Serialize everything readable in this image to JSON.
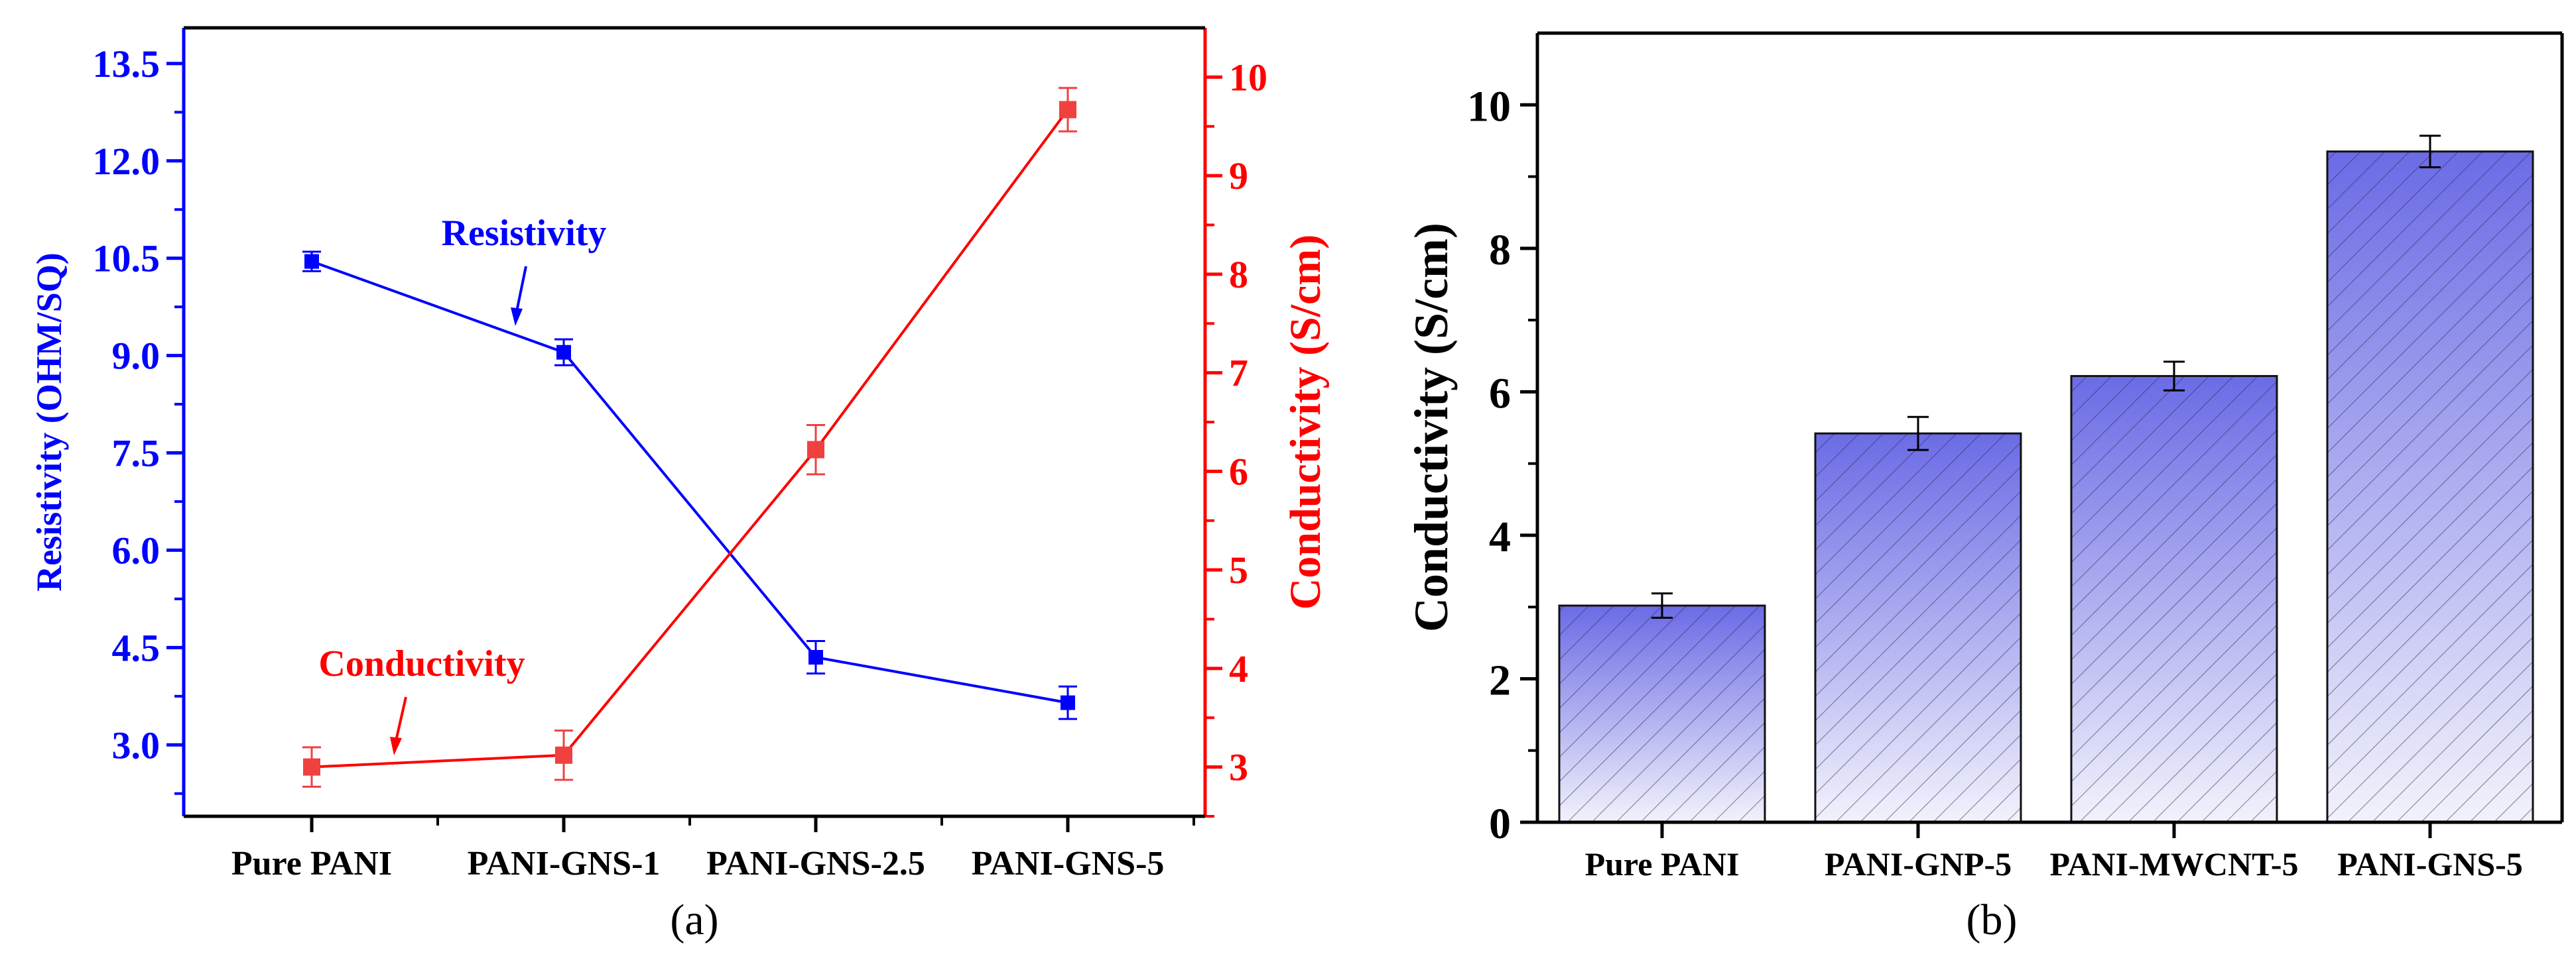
{
  "chart_data": [
    {
      "panel_label": "(a)",
      "type": "line",
      "categories": [
        "Pure PANI",
        "PANI-GNS-1",
        "PANI-GNS-2.5",
        "PANI-GNS-5"
      ],
      "series": [
        {
          "name": "Resistivity",
          "axis": "left",
          "color": "#0000ff",
          "values": [
            10.45,
            9.05,
            4.35,
            3.65
          ],
          "errors": [
            0.15,
            0.2,
            0.25,
            0.25
          ]
        },
        {
          "name": "Conductivity",
          "axis": "right",
          "color": "#ff0000",
          "marker_color": "#f04040",
          "values": [
            3.0,
            3.12,
            6.22,
            9.67
          ],
          "errors": [
            0.2,
            0.25,
            0.25,
            0.22
          ]
        }
      ],
      "ylabel_left": "Resistivity (OHM/SQ)",
      "ylabel_right": "Conductivity (S/cm)",
      "ylim_left": [
        1.9,
        14.05
      ],
      "ylim_right": [
        2.5,
        10.5
      ],
      "yticks_left": [
        "3.0",
        "4.5",
        "6.0",
        "7.5",
        "9.0",
        "10.5",
        "12.0",
        "13.5"
      ],
      "yticks_right": [
        "3",
        "4",
        "5",
        "6",
        "7",
        "8",
        "9",
        "10"
      ],
      "annotations": [
        {
          "text": "Resistivity",
          "color": "#0000ff",
          "points_to": "PANI-GNS-1"
        },
        {
          "text": "Conductivity",
          "color": "#ff0000",
          "points_to": "Pure PANI"
        }
      ]
    },
    {
      "panel_label": "(b)",
      "type": "bar",
      "categories": [
        "Pure PANI",
        "PANI-GNP-5",
        "PANI-MWCNT-5",
        "PANI-GNS-5"
      ],
      "values": [
        3.02,
        5.42,
        6.22,
        9.35
      ],
      "errors": [
        0.17,
        0.23,
        0.2,
        0.22
      ],
      "ylabel": "Conductivity (S/cm)",
      "ylim": [
        0,
        11
      ],
      "yticks": [
        "0",
        "2",
        "4",
        "6",
        "8",
        "10"
      ],
      "bar_color": "#6b6be0"
    }
  ]
}
